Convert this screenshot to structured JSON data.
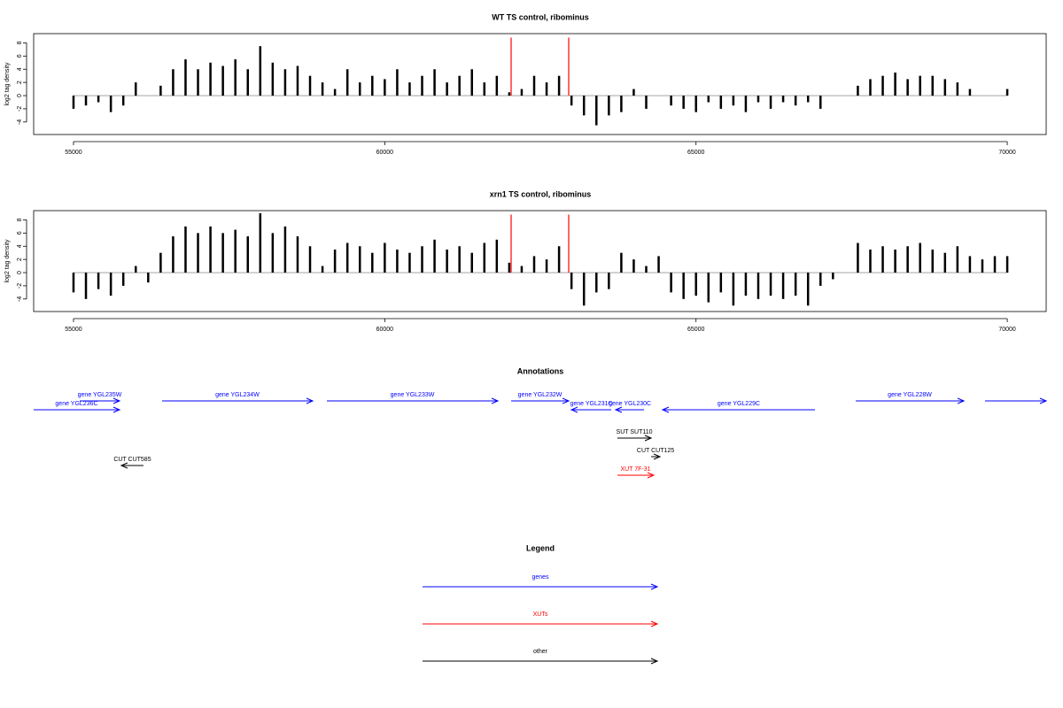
{
  "chart_data": [
    {
      "type": "bar",
      "title": "WT TS control, ribominus",
      "ylabel": "log2 tag density",
      "color": "#000000",
      "x": [
        55000,
        55200,
        55400,
        55600,
        55800,
        56000,
        56200,
        56400,
        56600,
        56800,
        57000,
        57200,
        57400,
        57600,
        57800,
        58000,
        58200,
        58400,
        58600,
        58800,
        59000,
        59200,
        59400,
        59600,
        59800,
        60000,
        60200,
        60400,
        60600,
        60800,
        61000,
        61200,
        61400,
        61600,
        61800,
        62000,
        62200,
        62400,
        62600,
        62800,
        63000,
        63200,
        63400,
        63600,
        63800,
        64000,
        64200,
        64400,
        64600,
        64800,
        65000,
        65200,
        65400,
        65600,
        65800,
        66000,
        66200,
        66400,
        66600,
        66800,
        67000,
        67200,
        67400,
        67600,
        67800,
        68000,
        68200,
        68400,
        68600,
        68800,
        69000,
        69200,
        69400,
        69600,
        69800,
        70000
      ],
      "values": [
        -2,
        -1.5,
        -1,
        -2.5,
        -1.5,
        2,
        0,
        1.5,
        4,
        5.5,
        4,
        5,
        4.5,
        5.5,
        4,
        7.5,
        5,
        4,
        4.5,
        3,
        2,
        1,
        4,
        2,
        3,
        2.5,
        4,
        2,
        3,
        4,
        2,
        3,
        4,
        2,
        3,
        0.5,
        1,
        3,
        2,
        3,
        -1.5,
        -3,
        -4.5,
        -3,
        -2.5,
        1,
        -2,
        0,
        -1.5,
        -2,
        -2.5,
        -1,
        -2,
        -1.5,
        -2.5,
        -1,
        -2,
        -1,
        -1.5,
        -1,
        -2,
        0,
        0,
        1.5,
        2.5,
        3,
        3.5,
        2.5,
        3,
        3,
        2.5,
        2,
        1,
        0,
        0,
        1
      ],
      "highlight": {
        "color": "#ff0000",
        "x": [
          62030,
          62955
        ],
        "values": [
          8.8,
          8.8
        ]
      },
      "xlim": [
        54360,
        70625
      ],
      "ylim": [
        -5.9,
        9.4
      ],
      "xticks": [
        55000,
        60000,
        65000,
        70000
      ],
      "yticks": [
        -4,
        -2,
        0,
        2,
        4,
        6,
        8
      ]
    },
    {
      "type": "bar",
      "title": "xrn1 TS control, ribominus",
      "ylabel": "log2 tag density",
      "color": "#000000",
      "x": [
        55000,
        55200,
        55400,
        55600,
        55800,
        56000,
        56200,
        56400,
        56600,
        56800,
        57000,
        57200,
        57400,
        57600,
        57800,
        58000,
        58200,
        58400,
        58600,
        58800,
        59000,
        59200,
        59400,
        59600,
        59800,
        60000,
        60200,
        60400,
        60600,
        60800,
        61000,
        61200,
        61400,
        61600,
        61800,
        62000,
        62200,
        62400,
        62600,
        62800,
        63000,
        63200,
        63400,
        63600,
        63800,
        64000,
        64200,
        64400,
        64600,
        64800,
        65000,
        65200,
        65400,
        65600,
        65800,
        66000,
        66200,
        66400,
        66600,
        66800,
        67000,
        67200,
        67400,
        67600,
        67800,
        68000,
        68200,
        68400,
        68600,
        68800,
        69000,
        69200,
        69400,
        69600,
        69800,
        70000
      ],
      "values": [
        -3,
        -4,
        -2.5,
        -3.5,
        -2,
        1,
        -1.5,
        3,
        5.5,
        7,
        6,
        7,
        6,
        6.5,
        5.5,
        9,
        6,
        7,
        5.5,
        4,
        1,
        3.5,
        4.5,
        4,
        3,
        4.5,
        3.5,
        3,
        4,
        5,
        3.5,
        4,
        3,
        4.5,
        5,
        1.5,
        1,
        2.5,
        2,
        4,
        -2.5,
        -5,
        -3,
        -2.5,
        3,
        2,
        1,
        2.5,
        -3,
        -4,
        -3.5,
        -4.5,
        -3,
        -5,
        -3.5,
        -4,
        -3.5,
        -4,
        -3.5,
        -5,
        -2,
        -1,
        0,
        4.5,
        3.5,
        4,
        3.5,
        4,
        4.5,
        3.5,
        3,
        4,
        2.5,
        2,
        2.5,
        2.5
      ],
      "highlight": {
        "color": "#ff0000",
        "x": [
          62030,
          62955
        ],
        "values": [
          8.8,
          8.8
        ]
      },
      "xlim": [
        54360,
        70625
      ],
      "ylim": [
        -5.9,
        9.4
      ],
      "xticks": [
        55000,
        60000,
        65000,
        70000
      ],
      "yticks": [
        -4,
        -2,
        0,
        2,
        4,
        6,
        8
      ]
    }
  ],
  "annotations": {
    "title": "Annotations",
    "features": [
      {
        "label": "gene YGL236C",
        "color": "#0000ff",
        "start": 54360,
        "end": 55740,
        "strand": "+"
      },
      {
        "label": "gene YGL235W",
        "color": "#0000ff",
        "start": 55100,
        "end": 55740,
        "strand": "+"
      },
      {
        "label": "gene YGL234W",
        "color": "#0000ff",
        "start": 56423,
        "end": 58842,
        "strand": "+"
      },
      {
        "label": "gene YGL233W",
        "color": "#0000ff",
        "start": 59070,
        "end": 61817,
        "strand": "+"
      },
      {
        "label": "gene YGL232W",
        "color": "#0000ff",
        "start": 62030,
        "end": 62955,
        "strand": "+"
      },
      {
        "label": "gene YGL231C",
        "color": "#0000ff",
        "start": 62998,
        "end": 63638,
        "strand": "-"
      },
      {
        "label": "gene YGL230C",
        "color": "#0000ff",
        "start": 63709,
        "end": 64165,
        "strand": "-"
      },
      {
        "label": "gene YGL229C",
        "color": "#0000ff",
        "start": 64463,
        "end": 66911,
        "strand": "-"
      },
      {
        "label": "gene YGL228W",
        "color": "#0000ff",
        "start": 67566,
        "end": 69302,
        "strand": "+"
      },
      {
        "label": null,
        "color": "#0000ff",
        "start": 69643,
        "end": 70625,
        "strand": "+"
      },
      {
        "label": "SUT SUT110",
        "color": "#000000",
        "start": 63738,
        "end": 64279,
        "strand": "+"
      },
      {
        "label": "CUT CUT125",
        "color": "#000000",
        "start": 64279,
        "end": 64421,
        "strand": "+"
      },
      {
        "label": "XUT 7F-31",
        "color": "#ff0000",
        "start": 63738,
        "end": 64321,
        "strand": "+"
      },
      {
        "label": "CUT CUT585",
        "color": "#000000",
        "start": 55768,
        "end": 56124,
        "strand": "-"
      }
    ]
  },
  "legend": {
    "title": "Legend",
    "items": [
      {
        "label": "genes",
        "color": "#0000ff"
      },
      {
        "label": "XUTs",
        "color": "#ff0000"
      },
      {
        "label": "other",
        "color": "#000000"
      }
    ]
  }
}
